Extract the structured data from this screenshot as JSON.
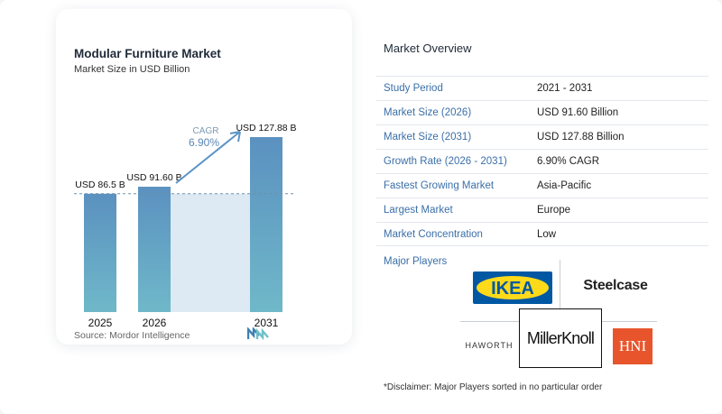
{
  "colors": {
    "bar": "#5d9cc4",
    "bar_top": "#5b91c0",
    "bar_bottom": "#6fb8c9",
    "fill": "#dde9f3",
    "arrow": "#5b94c6",
    "accent": "#3a6fa8"
  },
  "chart_data": {
    "type": "bar",
    "title": "Modular Furniture Market",
    "subtitle": "Market Size in USD Billion",
    "categories": [
      "2025",
      "2026",
      "2031"
    ],
    "values": [
      86.5,
      91.6,
      127.88
    ],
    "value_labels": [
      "USD 86.5 B",
      "USD 91.60 B",
      "USD 127.88 B"
    ],
    "cagr_label": "CAGR",
    "cagr_value": "6.90%",
    "reference_line_value": 86.5,
    "grid": false,
    "legend": "none"
  },
  "source": "Source: Mordor Intelligence",
  "overview": {
    "title": "Market Overview",
    "rows": [
      {
        "label": "Study Period",
        "value": "2021 - 2031"
      },
      {
        "label": "Market Size (2026)",
        "value": "USD 91.60 Billion"
      },
      {
        "label": "Market Size (2031)",
        "value": "USD 127.88 Billion"
      },
      {
        "label": "Growth Rate (2026 - 2031)",
        "value": "6.90% CAGR"
      },
      {
        "label": "Fastest Growing Market",
        "value": "Asia-Pacific"
      },
      {
        "label": "Largest Market",
        "value": "Europe"
      },
      {
        "label": "Market Concentration",
        "value": "Low"
      }
    ],
    "major_players_label": "Major Players",
    "players": [
      "IKEA",
      "Steelcase",
      "HAWORTH",
      "MillerKnoll",
      "HNI"
    ],
    "disclaimer": "*Disclaimer: Major Players sorted in no particular order"
  }
}
